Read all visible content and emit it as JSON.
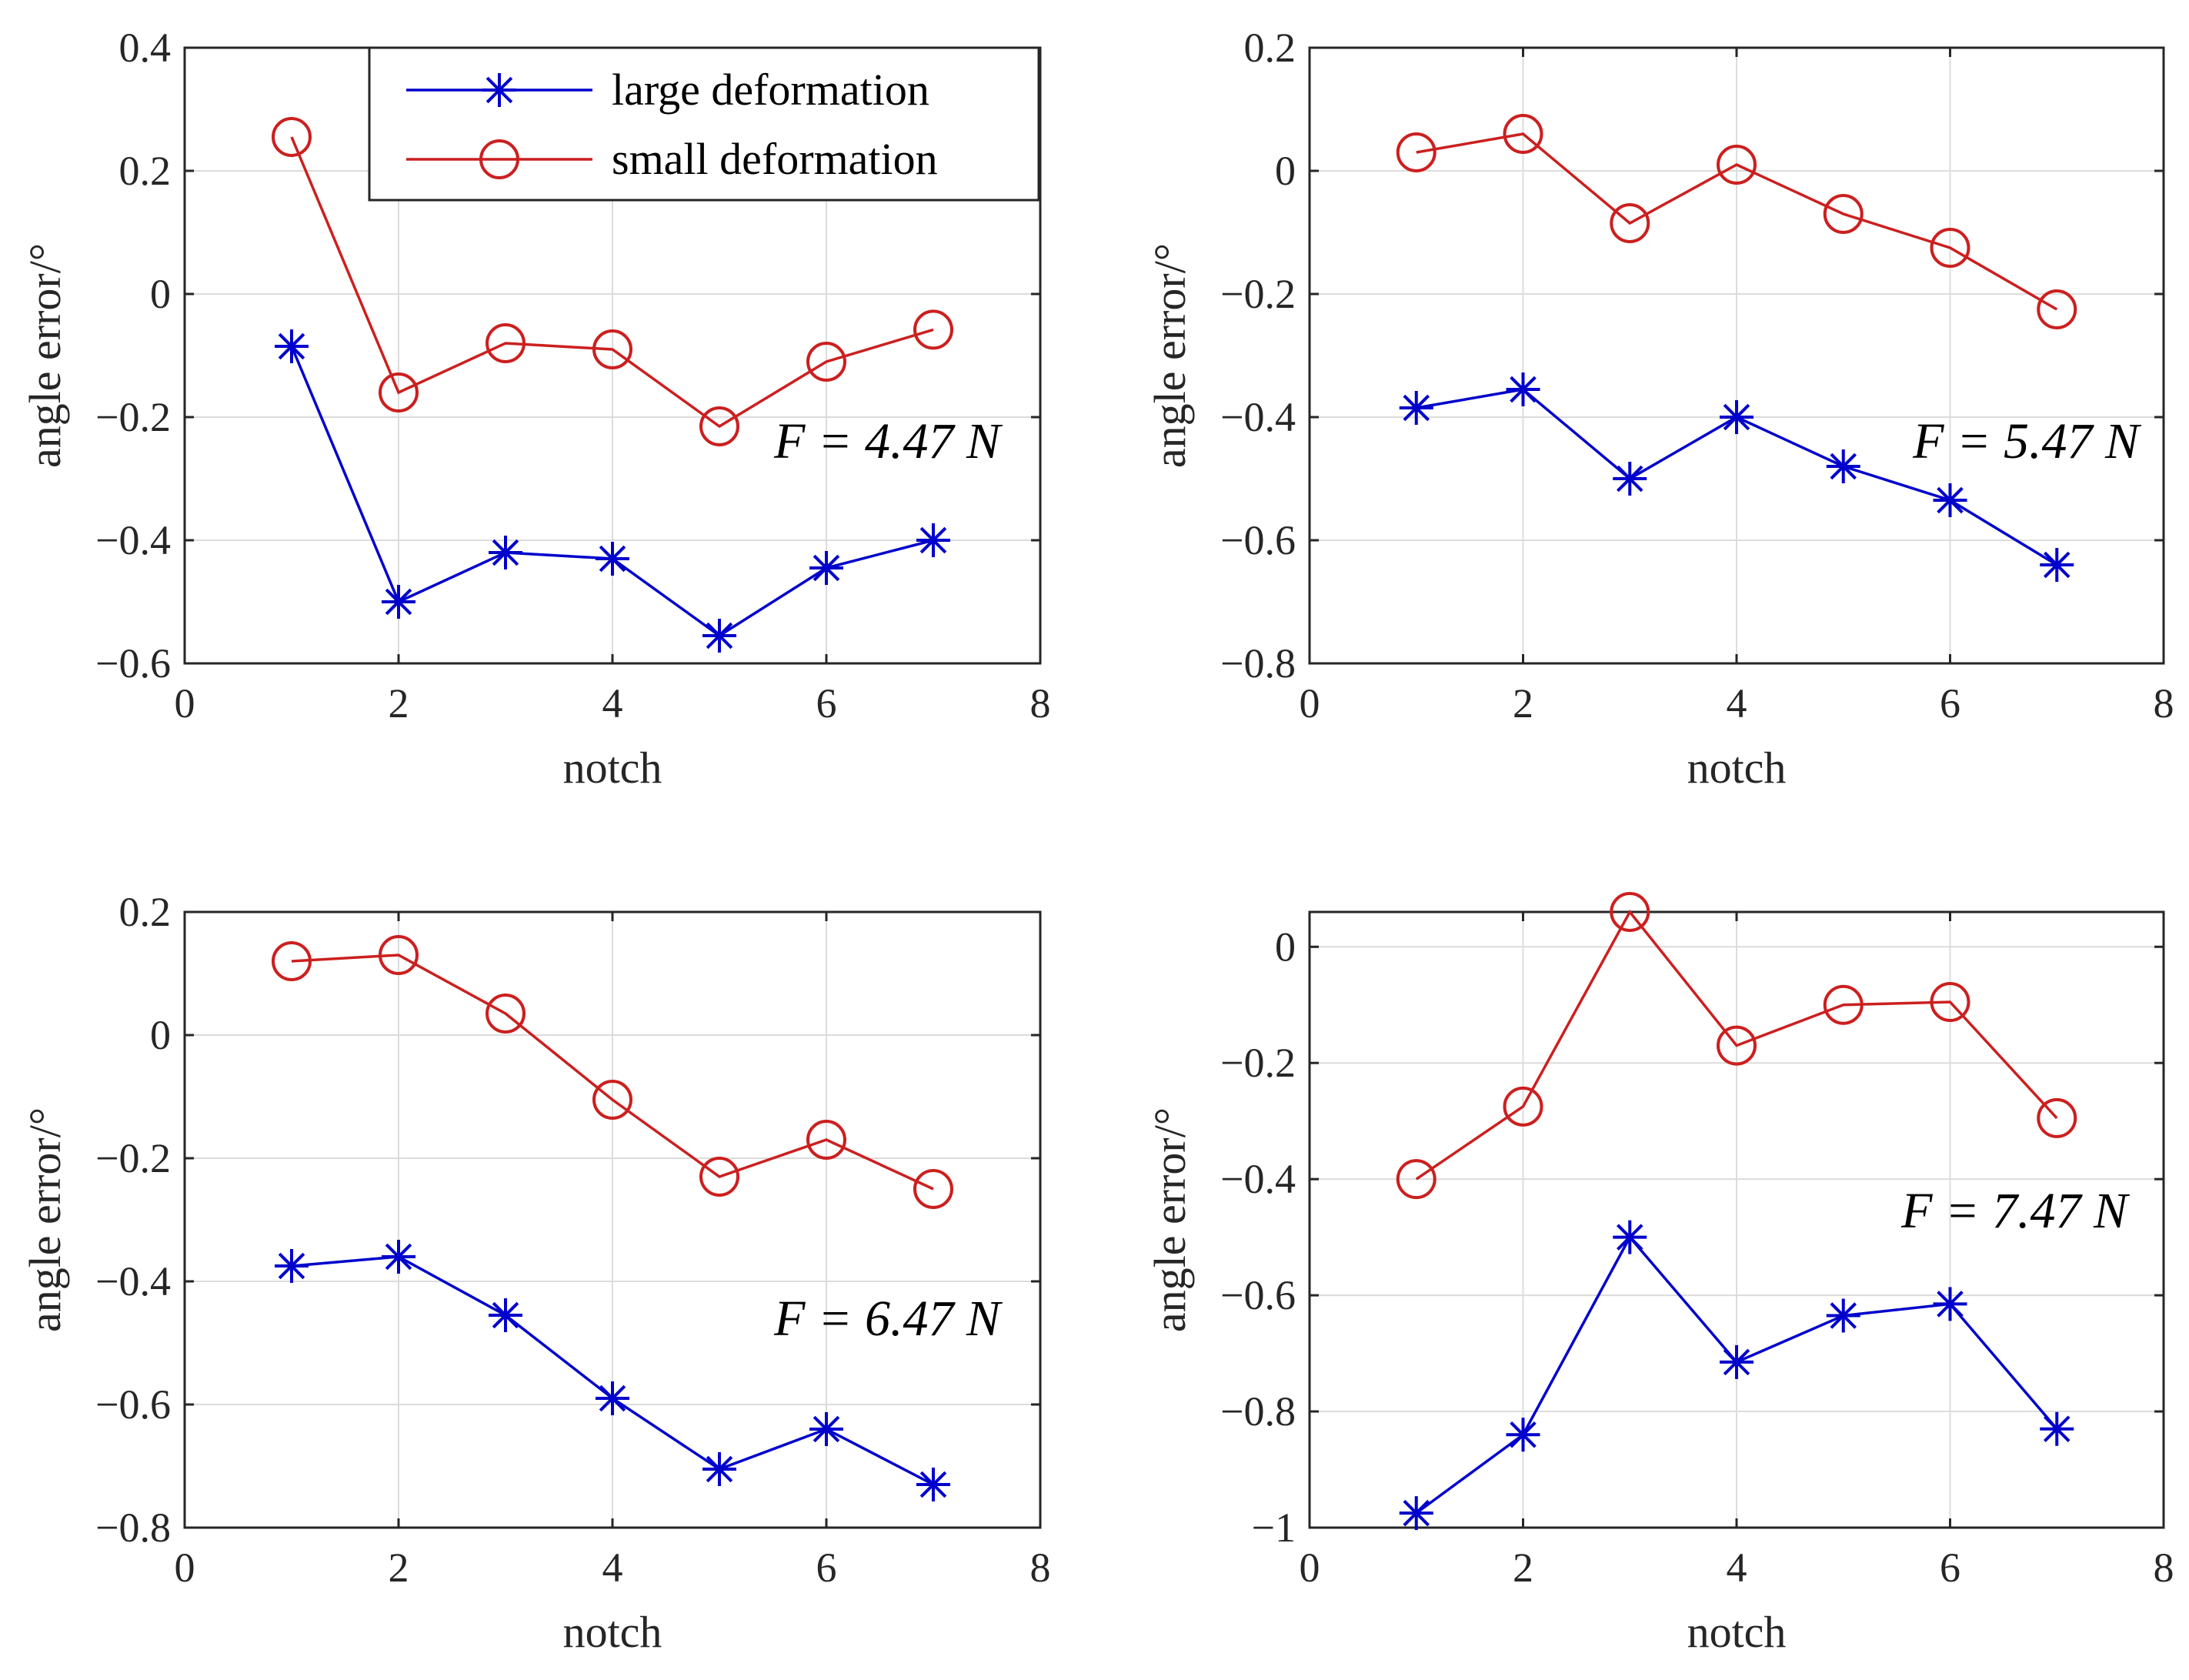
{
  "chart_data": [
    {
      "type": "line",
      "x": [
        1,
        2,
        3,
        4,
        5,
        6,
        7
      ],
      "xlim": [
        0,
        8
      ],
      "xticks": [
        0,
        2,
        4,
        6,
        8
      ],
      "xtick_labels": [
        "0",
        "2",
        "4",
        "6",
        "8"
      ],
      "ylim": [
        -0.6,
        0.4
      ],
      "yticks": [
        -0.6,
        -0.4,
        -0.2,
        0,
        0.2,
        0.4
      ],
      "ytick_labels": [
        "−0.6",
        "−0.4",
        "−0.2",
        "0",
        "0.2",
        "0.4"
      ],
      "xlabel": "notch",
      "ylabel": "angle error/°",
      "annotation": "F = 4.47 N",
      "grid": true,
      "legend": {
        "position": "top-right",
        "entries": [
          "large deformation",
          "small deformation"
        ]
      },
      "series": [
        {
          "name": "large deformation",
          "color": "#0000cc",
          "marker": "asterisk",
          "values": [
            -0.085,
            -0.5,
            -0.42,
            -0.43,
            -0.555,
            -0.445,
            -0.4
          ]
        },
        {
          "name": "small deformation",
          "color": "#cc1f1f",
          "marker": "circle",
          "values": [
            0.255,
            -0.16,
            -0.08,
            -0.09,
            -0.215,
            -0.11,
            -0.058
          ]
        }
      ]
    },
    {
      "type": "line",
      "x": [
        1,
        2,
        3,
        4,
        5,
        6,
        7
      ],
      "xlim": [
        0,
        8
      ],
      "xticks": [
        0,
        2,
        4,
        6,
        8
      ],
      "xtick_labels": [
        "0",
        "2",
        "4",
        "6",
        "8"
      ],
      "ylim": [
        -0.8,
        0.2
      ],
      "yticks": [
        -0.8,
        -0.6,
        -0.4,
        -0.2,
        0,
        0.2
      ],
      "ytick_labels": [
        "−0.8",
        "−0.6",
        "−0.4",
        "−0.2",
        "0",
        "0.2"
      ],
      "xlabel": "notch",
      "ylabel": "angle error/°",
      "annotation": "F = 5.47 N",
      "grid": true,
      "series": [
        {
          "name": "large deformation",
          "color": "#0000cc",
          "marker": "asterisk",
          "values": [
            -0.385,
            -0.355,
            -0.5,
            -0.4,
            -0.48,
            -0.535,
            -0.64
          ]
        },
        {
          "name": "small deformation",
          "color": "#cc1f1f",
          "marker": "circle",
          "values": [
            0.03,
            0.06,
            -0.085,
            0.01,
            -0.07,
            -0.125,
            -0.225
          ]
        }
      ]
    },
    {
      "type": "line",
      "x": [
        1,
        2,
        3,
        4,
        5,
        6,
        7
      ],
      "xlim": [
        0,
        8
      ],
      "xticks": [
        0,
        2,
        4,
        6,
        8
      ],
      "xtick_labels": [
        "0",
        "2",
        "4",
        "6",
        "8"
      ],
      "ylim": [
        -0.8,
        0.2
      ],
      "yticks": [
        -0.8,
        -0.6,
        -0.4,
        -0.2,
        0,
        0.2
      ],
      "ytick_labels": [
        "−0.8",
        "−0.6",
        "−0.4",
        "−0.2",
        "0",
        "0.2"
      ],
      "xlabel": "notch",
      "ylabel": "angle error/°",
      "annotation": "F = 6.47 N",
      "grid": true,
      "series": [
        {
          "name": "large deformation",
          "color": "#0000cc",
          "marker": "asterisk",
          "values": [
            -0.375,
            -0.36,
            -0.455,
            -0.59,
            -0.705,
            -0.64,
            -0.73
          ]
        },
        {
          "name": "small deformation",
          "color": "#cc1f1f",
          "marker": "circle",
          "values": [
            0.12,
            0.13,
            0.035,
            -0.105,
            -0.23,
            -0.17,
            -0.25
          ]
        }
      ]
    },
    {
      "type": "line",
      "x": [
        1,
        2,
        3,
        4,
        5,
        6,
        7
      ],
      "xlim": [
        0,
        8
      ],
      "xticks": [
        0,
        2,
        4,
        6,
        8
      ],
      "xtick_labels": [
        "0",
        "2",
        "4",
        "6",
        "8"
      ],
      "ylim": [
        -1,
        0.06
      ],
      "yticks": [
        -1,
        -0.8,
        -0.6,
        -0.4,
        -0.2,
        0
      ],
      "ytick_labels": [
        "−1",
        "−0.8",
        "−0.6",
        "−0.4",
        "−0.2",
        "0"
      ],
      "xlabel": "notch",
      "ylabel": "angle error/°",
      "annotation": "F = 7.47 N",
      "grid": true,
      "series": [
        {
          "name": "large deformation",
          "color": "#0000cc",
          "marker": "asterisk",
          "values": [
            -0.975,
            -0.84,
            -0.5,
            -0.715,
            -0.635,
            -0.615,
            -0.83
          ]
        },
        {
          "name": "small deformation",
          "color": "#cc1f1f",
          "marker": "circle",
          "values": [
            -0.4,
            -0.275,
            0.06,
            -0.17,
            -0.1,
            -0.095,
            -0.295
          ]
        }
      ]
    }
  ]
}
